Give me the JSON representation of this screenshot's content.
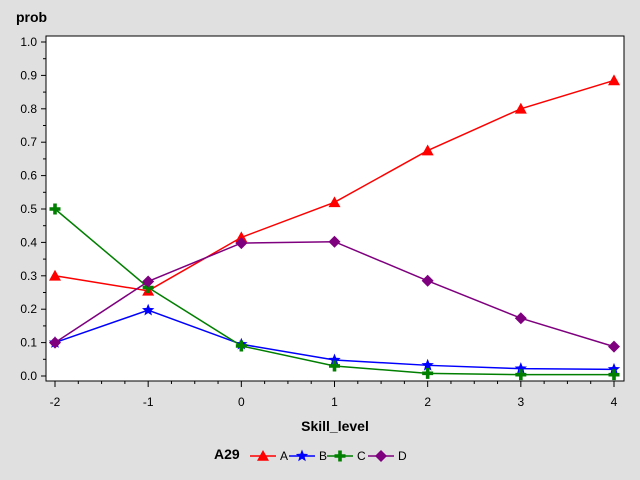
{
  "chart_data": {
    "type": "line",
    "xlabel": "Skill_level",
    "ylabel": "prob",
    "x": [
      -2,
      -1,
      0,
      1,
      2,
      3,
      4
    ],
    "xlim": [
      -2,
      4
    ],
    "ylim": [
      0,
      1.0
    ],
    "x_ticks": [
      "-2",
      "-1",
      "0",
      "1",
      "2",
      "3",
      "4"
    ],
    "y_ticks": [
      "0.0",
      "0.1",
      "0.2",
      "0.3",
      "0.4",
      "0.5",
      "0.6",
      "0.7",
      "0.8",
      "0.9",
      "1.0"
    ],
    "legend_title": "A29",
    "legend_position": "bottom",
    "grid": false,
    "series": [
      {
        "name": "A",
        "color": "#ff0000",
        "marker": "triangle",
        "values": [
          0.3,
          0.255,
          0.415,
          0.52,
          0.675,
          0.8,
          0.885
        ]
      },
      {
        "name": "B",
        "color": "#0000ff",
        "marker": "star",
        "values": [
          0.1,
          0.197,
          0.095,
          0.048,
          0.032,
          0.022,
          0.02
        ]
      },
      {
        "name": "C",
        "color": "#007f00",
        "marker": "plus",
        "values": [
          0.5,
          0.265,
          0.09,
          0.03,
          0.008,
          0.004,
          0.004
        ]
      },
      {
        "name": "D",
        "color": "#7f007f",
        "marker": "diamond",
        "values": [
          0.1,
          0.283,
          0.398,
          0.402,
          0.285,
          0.173,
          0.088
        ]
      }
    ]
  }
}
